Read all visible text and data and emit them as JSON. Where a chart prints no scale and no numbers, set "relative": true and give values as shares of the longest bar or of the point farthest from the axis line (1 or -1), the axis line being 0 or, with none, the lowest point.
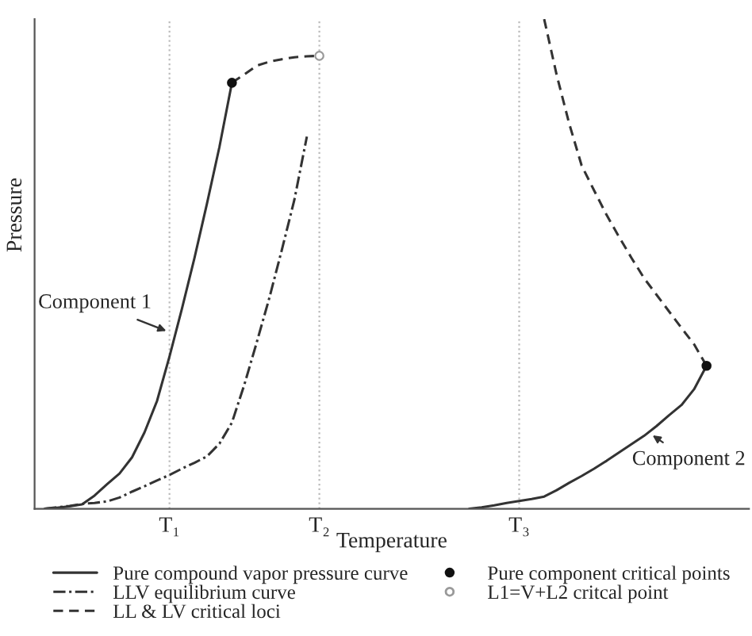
{
  "chart_data": {
    "type": "line",
    "relative": true,
    "xlabel": "Temperature",
    "ylabel": "Pressure",
    "categories": [
      null,
      null,
      null,
      null,
      null,
      null,
      null,
      null,
      null,
      null,
      "T₁",
      null,
      null,
      null,
      null,
      null,
      null,
      null,
      null,
      null,
      null,
      null,
      "T₂",
      null,
      null,
      null,
      null,
      null,
      null,
      null,
      null,
      null,
      null,
      null,
      null,
      null,
      null,
      null,
      "T₃",
      null,
      null,
      null,
      null,
      null,
      null,
      null,
      null,
      null,
      null,
      null,
      null,
      null,
      null,
      null,
      null,
      null,
      null
    ],
    "grid": "x",
    "legend": "bottom",
    "series": [
      {
        "name": "Pure compound vapor pressure curve",
        "line_style": "solid",
        "color": "#333333",
        "values": [
          0,
          0.002,
          0.005,
          0.009,
          0.027,
          0.05,
          0.072,
          0.105,
          0.156,
          0.22,
          0.311,
          0.409,
          0.512,
          0.623,
          0.739,
          0.87,
          null,
          null,
          null,
          null,
          null,
          null,
          null,
          null,
          null,
          null,
          null,
          null,
          null,
          null,
          null,
          null,
          null,
          null,
          0,
          0.003,
          0.007,
          0.012,
          0.016,
          0.02,
          0.025,
          0.038,
          0.053,
          0.067,
          0.082,
          0.098,
          0.115,
          0.132,
          0.149,
          0.169,
          0.191,
          0.212,
          0.244,
          0.292,
          null,
          null,
          null
        ]
      },
      {
        "name": "LLV equilibrium curve",
        "line_style": "dashdot",
        "color": "#333333",
        "values": [
          0,
          0.003,
          0.006,
          0.01,
          0.012,
          0.015,
          0.023,
          0.035,
          0.046,
          0.058,
          0.069,
          0.082,
          0.094,
          0.107,
          0.133,
          0.176,
          0.254,
          0.341,
          0.431,
          0.529,
          0.631,
          0.76,
          null,
          null,
          null,
          null,
          null,
          null,
          null,
          null,
          null,
          null,
          null,
          null,
          null,
          null,
          null,
          null,
          null,
          null,
          null,
          null,
          null,
          null,
          null,
          null,
          null,
          null,
          null,
          null,
          null,
          null,
          null,
          null,
          null,
          null,
          null
        ]
      },
      {
        "name": "LL & LV critical loci",
        "line_style": "dashed",
        "color": "#333333",
        "values": [
          null,
          null,
          null,
          null,
          null,
          null,
          null,
          null,
          null,
          null,
          null,
          null,
          null,
          null,
          null,
          0.87,
          0.887,
          0.905,
          0.913,
          0.918,
          0.922,
          0.924,
          0.925,
          null,
          null,
          null,
          null,
          null,
          null,
          null,
          null,
          null,
          null,
          null,
          null,
          null,
          null,
          null,
          null,
          null,
          1.0,
          0.886,
          0.787,
          0.701,
          0.65,
          0.6,
          0.555,
          0.512,
          0.471,
          0.437,
          0.403,
          0.369,
          0.336,
          0.292,
          null,
          null,
          null
        ]
      },
      {
        "name": "Pure component critical points",
        "type": "scatter",
        "marker": "circle",
        "color": "#111111",
        "values": [
          null,
          null,
          null,
          null,
          null,
          null,
          null,
          null,
          null,
          null,
          null,
          null,
          null,
          null,
          null,
          0.87,
          null,
          null,
          null,
          null,
          null,
          null,
          null,
          null,
          null,
          null,
          null,
          null,
          null,
          null,
          null,
          null,
          null,
          null,
          null,
          null,
          null,
          null,
          null,
          null,
          null,
          null,
          null,
          null,
          null,
          null,
          null,
          null,
          null,
          null,
          null,
          null,
          null,
          0.292,
          null,
          null,
          null
        ]
      },
      {
        "name": "L1=V+L2 critcal point",
        "type": "scatter",
        "marker": "open circle",
        "color": "#999999",
        "values": [
          null,
          null,
          null,
          null,
          null,
          null,
          null,
          null,
          null,
          null,
          null,
          null,
          null,
          null,
          null,
          null,
          null,
          null,
          null,
          null,
          null,
          null,
          0.925,
          null,
          null,
          null,
          null,
          null,
          null,
          null,
          null,
          null,
          null,
          null,
          null,
          null,
          null,
          null,
          null,
          null,
          null,
          null,
          null,
          null,
          null,
          null,
          null,
          null,
          null,
          null,
          null,
          null,
          null,
          null,
          null,
          null,
          null
        ]
      }
    ],
    "annotations": [
      "Component 1",
      "Component 2"
    ]
  }
}
